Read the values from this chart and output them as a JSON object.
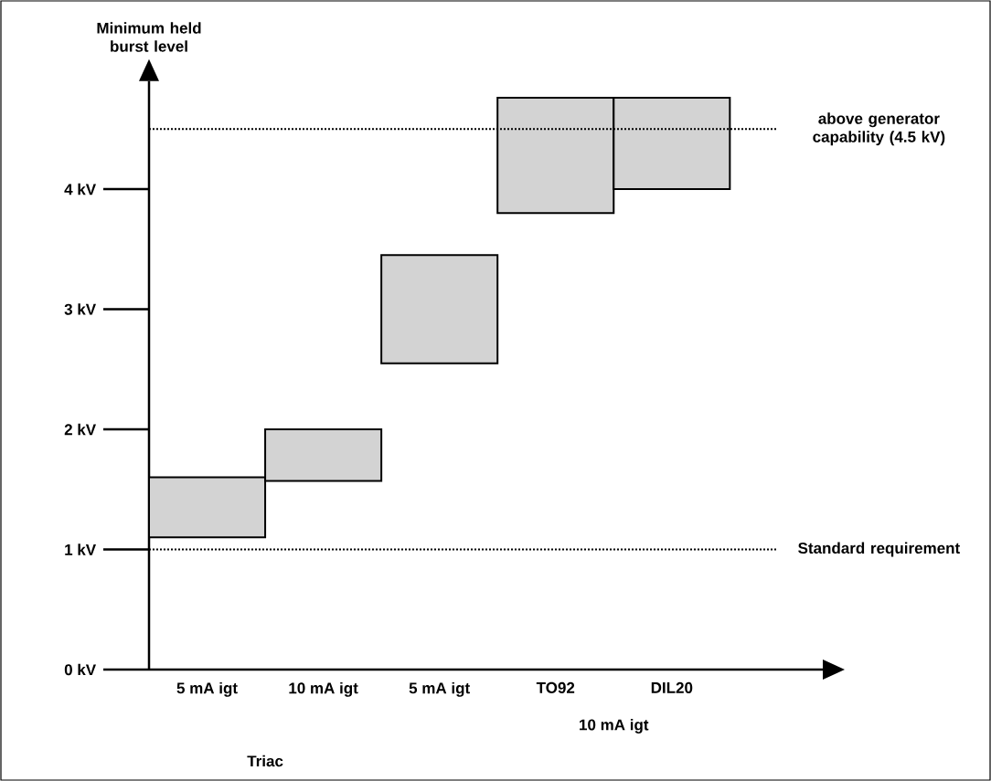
{
  "chart_data": {
    "type": "bar",
    "ylabel": "Minimum held burst level",
    "categories": [
      "5 mA igt",
      "10 mA igt",
      "5 mA igt",
      "TO92",
      "DIL20"
    ],
    "base": [
      1.1,
      1.57,
      2.55,
      3.8,
      4.0
    ],
    "values": [
      0.5,
      0.43,
      0.9,
      0.96,
      0.76
    ],
    "color": "#d3d3d3",
    "ylim": [
      0,
      4.9
    ],
    "yticks": [
      {
        "value": 0,
        "label": "0 kV"
      },
      {
        "value": 1,
        "label": "1 kV"
      },
      {
        "value": 2,
        "label": "2 kV"
      },
      {
        "value": 3,
        "label": "3 kV"
      },
      {
        "value": 4,
        "label": "4 kV"
      }
    ],
    "ref_lines": [
      {
        "axis": "y",
        "value": 1,
        "label": "Standard requirement",
        "line_style": "dotted"
      },
      {
        "axis": "y",
        "value": 4.5,
        "label": "above generator capability (4.5 kV)",
        "line_style": "dotted"
      }
    ],
    "annotations": [
      "10 mA igt",
      "Triac"
    ]
  }
}
